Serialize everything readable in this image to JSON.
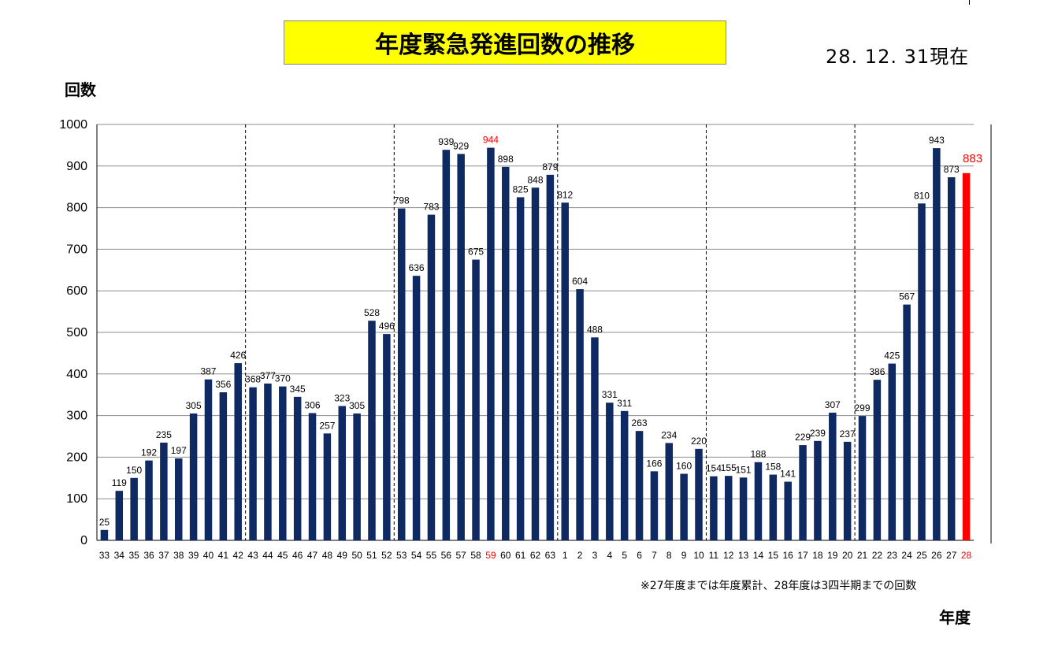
{
  "header": {
    "title": "年度緊急発進回数の推移",
    "date": "28. 12. 31現在"
  },
  "footer": {
    "note": "※27年度までは年度累計、28年度は3四半期までの回数"
  },
  "colors": {
    "bar": "#0f2a63",
    "highlight": "#ff0000",
    "title_bg": "#ffff00"
  },
  "chart_data": {
    "type": "bar",
    "ylabel": "回数",
    "xlabel": "年度",
    "ylim": [
      0,
      1000
    ],
    "yticks": [
      0,
      100,
      200,
      300,
      400,
      500,
      600,
      700,
      800,
      900,
      1000
    ],
    "grid": true,
    "categories": [
      "33",
      "34",
      "35",
      "36",
      "37",
      "38",
      "39",
      "40",
      "41",
      "42",
      "43",
      "44",
      "45",
      "46",
      "47",
      "48",
      "49",
      "50",
      "51",
      "52",
      "53",
      "54",
      "55",
      "56",
      "57",
      "58",
      "59",
      "60",
      "61",
      "62",
      "63",
      "1",
      "2",
      "3",
      "4",
      "5",
      "6",
      "7",
      "8",
      "9",
      "10",
      "11",
      "12",
      "13",
      "14",
      "15",
      "16",
      "17",
      "18",
      "19",
      "20",
      "21",
      "22",
      "23",
      "24",
      "25",
      "26",
      "27",
      "28"
    ],
    "values": [
      25,
      119,
      150,
      192,
      235,
      197,
      305,
      387,
      356,
      426,
      368,
      377,
      370,
      345,
      306,
      257,
      323,
      305,
      528,
      496,
      798,
      636,
      783,
      939,
      929,
      675,
      944,
      898,
      825,
      848,
      879,
      812,
      604,
      488,
      331,
      311,
      263,
      166,
      234,
      160,
      220,
      154,
      155,
      151,
      188,
      158,
      141,
      229,
      239,
      307,
      237,
      299,
      386,
      425,
      567,
      810,
      943,
      873,
      883
    ],
    "highlight_label_categories": [
      "59"
    ],
    "highlight_bar_categories": [
      "28"
    ],
    "era_dividers_after": [
      "42",
      "52",
      "63",
      "10",
      "20"
    ]
  }
}
